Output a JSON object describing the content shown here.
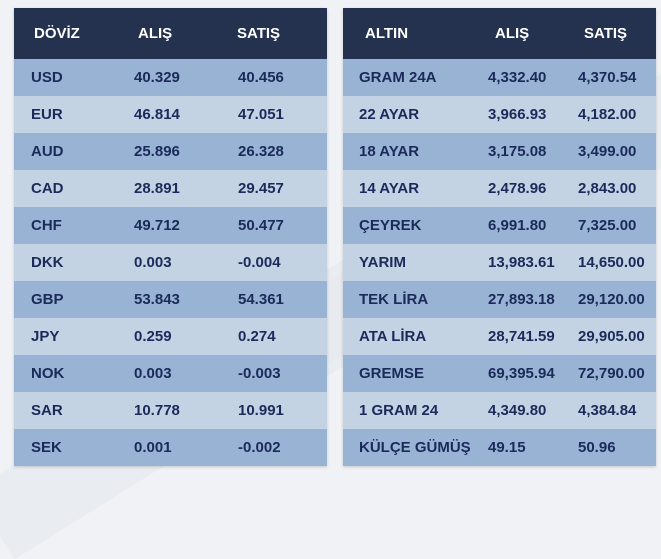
{
  "doviz": {
    "headers": [
      "DÖVİZ",
      "ALIŞ",
      "SATIŞ"
    ],
    "rows": [
      [
        "USD",
        "40.329",
        "40.456"
      ],
      [
        "EUR",
        "46.814",
        "47.051"
      ],
      [
        "AUD",
        "25.896",
        "26.328"
      ],
      [
        "CAD",
        "28.891",
        "29.457"
      ],
      [
        "CHF",
        "49.712",
        "50.477"
      ],
      [
        "DKK",
        "0.003",
        "-0.004"
      ],
      [
        "GBP",
        "53.843",
        "54.361"
      ],
      [
        "JPY",
        "0.259",
        "0.274"
      ],
      [
        "NOK",
        "0.003",
        "-0.003"
      ],
      [
        "SAR",
        "10.778",
        "10.991"
      ],
      [
        "SEK",
        "0.001",
        "-0.002"
      ]
    ]
  },
  "altin": {
    "headers": [
      "ALTIN",
      "ALIŞ",
      "SATIŞ"
    ],
    "rows": [
      [
        "GRAM 24A",
        "4,332.40",
        "4,370.54"
      ],
      [
        "22 AYAR",
        "3,966.93",
        "4,182.00"
      ],
      [
        "18 AYAR",
        "3,175.08",
        "3,499.00"
      ],
      [
        "14 AYAR",
        "2,478.96",
        "2,843.00"
      ],
      [
        "ÇEYREK",
        "6,991.80",
        "7,325.00"
      ],
      [
        "YARIM",
        "13,983.61",
        "14,650.00"
      ],
      [
        "TEK LİRA",
        "27,893.18",
        "29,120.00"
      ],
      [
        "ATA LİRA",
        "28,741.59",
        "29,905.00"
      ],
      [
        "GREMSE",
        "69,395.94",
        "72,790.00"
      ],
      [
        "1 GRAM 24",
        "4,349.80",
        "4,384.84"
      ],
      [
        "KÜLÇE GÜMÜŞ",
        "49.15",
        "50.96"
      ]
    ]
  },
  "colors": {
    "header_bg": "#243250",
    "header_text": "#ffffff",
    "row_odd": "#98b3d3",
    "row_even": "#c3d3e4",
    "cell_text": "#1c2a5a"
  }
}
